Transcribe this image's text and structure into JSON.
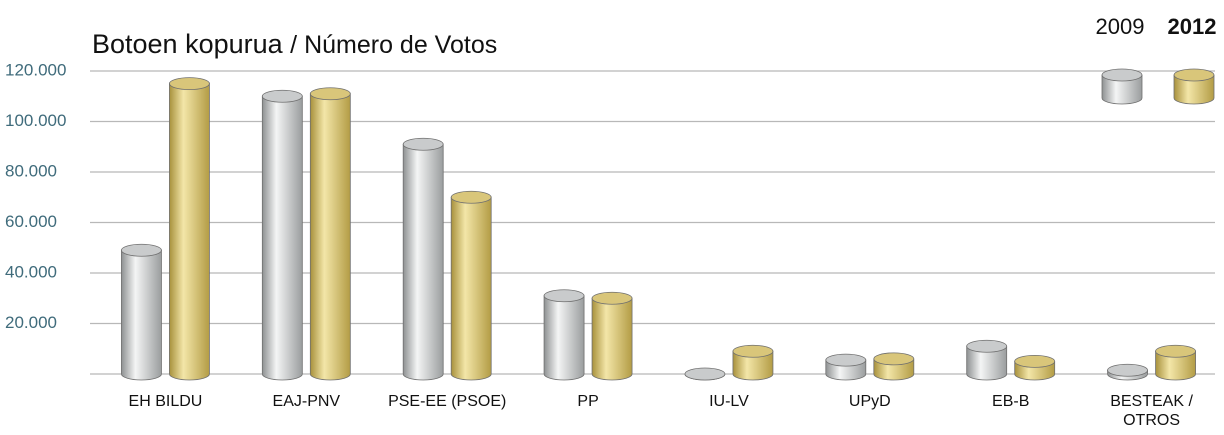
{
  "chart_data": {
    "type": "bar",
    "title": "Botoen kopurua",
    "subtitle": "/ Número de Votos",
    "categories": [
      "EH BILDU",
      "EAJ-PNV",
      "PSE-EE (PSOE)",
      "PP",
      "IU-LV",
      "UPyD",
      "EB-B",
      "BESTEAK / OTROS"
    ],
    "series": [
      {
        "name": "2009",
        "color": "#c9cbcc",
        "values": [
          49000,
          110000,
          91000,
          31000,
          0,
          5500,
          11000,
          1500
        ]
      },
      {
        "name": "2012",
        "color": "#d9c67a",
        "values": [
          115000,
          111000,
          70000,
          30000,
          9000,
          6000,
          5000,
          9000
        ]
      }
    ],
    "ylim": [
      0,
      120000
    ],
    "yticks": [
      {
        "value": 20000,
        "label": "20.000"
      },
      {
        "value": 40000,
        "label": "40.000"
      },
      {
        "value": 60000,
        "label": "60.000"
      },
      {
        "value": 80000,
        "label": "80.000"
      },
      {
        "value": 100000,
        "label": "100.000"
      },
      {
        "value": 120000,
        "label": "120.000"
      }
    ],
    "grid": true,
    "legend": "top-right"
  }
}
